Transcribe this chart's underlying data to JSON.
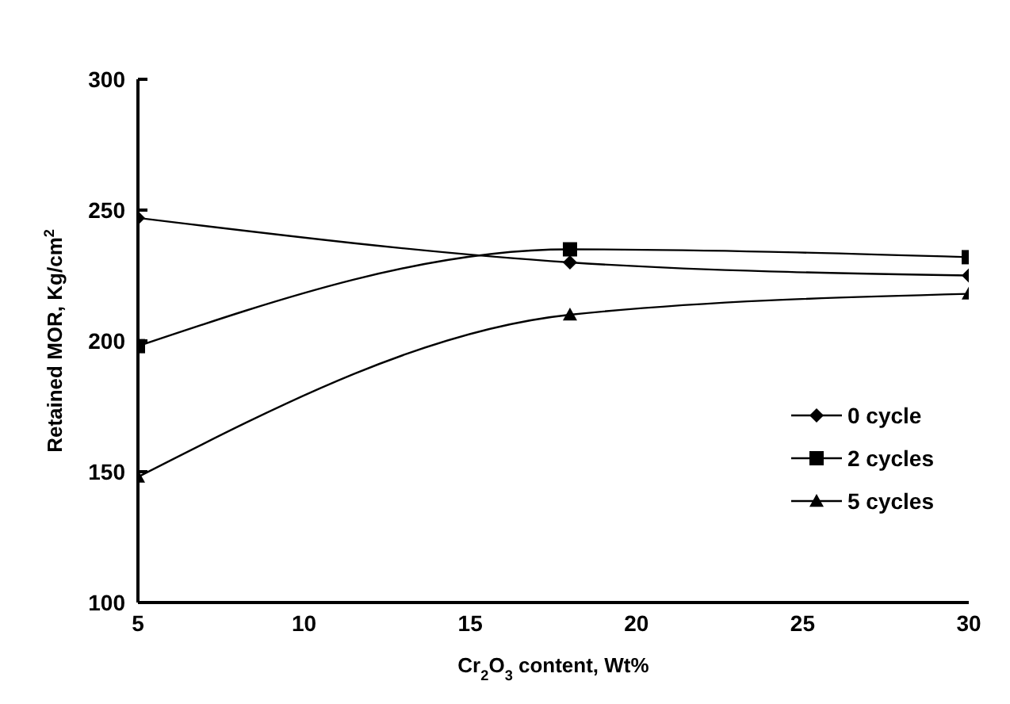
{
  "chart_data": {
    "type": "line",
    "xlabel": "Cr$_{2}$O$_{3}$ content, Wt%",
    "ylabel": "Retained MOR, Kg/cm$^{2}$",
    "x": [
      5,
      18,
      30
    ],
    "xlim": [
      5,
      30
    ],
    "xticks": [
      5,
      10,
      15,
      20,
      25,
      30
    ],
    "ylim": [
      100,
      300
    ],
    "yticks": [
      100,
      150,
      200,
      250,
      300
    ],
    "grid": false,
    "legend": "right",
    "line_style": "solid",
    "series": [
      {
        "name": "0 cycle",
        "color": "#000000",
        "marker": "diamond",
        "values": [
          247,
          230,
          225
        ]
      },
      {
        "name": "2 cycles",
        "color": "#000000",
        "marker": "square",
        "values": [
          198,
          235,
          232
        ]
      },
      {
        "name": "5 cycles",
        "color": "#000000",
        "marker": "triangle",
        "values": [
          148,
          210,
          218
        ]
      }
    ]
  }
}
